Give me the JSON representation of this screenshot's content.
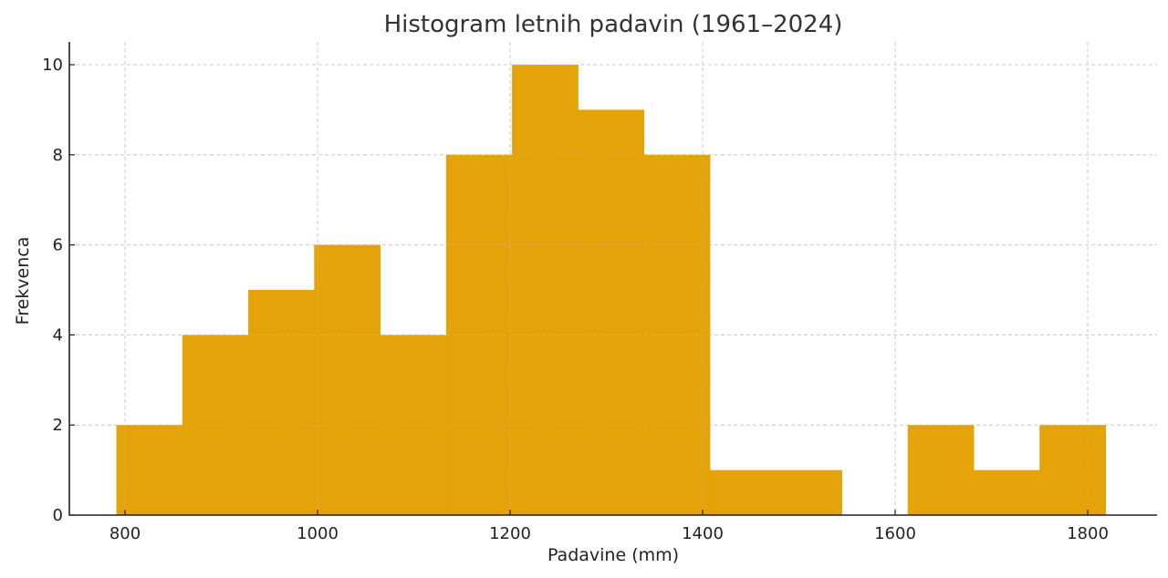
{
  "chart_data": {
    "type": "bar",
    "subtype": "histogram",
    "title": "Histogram letnih padavin (1961–2024)",
    "xlabel": "Padavine (mm)",
    "ylabel": "Frekvenca",
    "xlim": [
      740,
      1875
    ],
    "ylim": [
      0,
      10.5
    ],
    "x_ticks": [
      800,
      1000,
      1200,
      1400,
      1600,
      1800
    ],
    "y_ticks": [
      0,
      2,
      4,
      6,
      8,
      10
    ],
    "grid": true,
    "bar_color": "#E3A000",
    "bin_edges": [
      791,
      859.5,
      928,
      996.5,
      1065,
      1133.5,
      1202,
      1270.5,
      1339,
      1407.5,
      1476,
      1544.5,
      1613,
      1681.5,
      1750,
      1818.5
    ],
    "values": [
      2,
      4,
      5,
      6,
      4,
      8,
      10,
      9,
      8,
      1,
      1,
      0,
      2,
      1,
      2
    ]
  }
}
